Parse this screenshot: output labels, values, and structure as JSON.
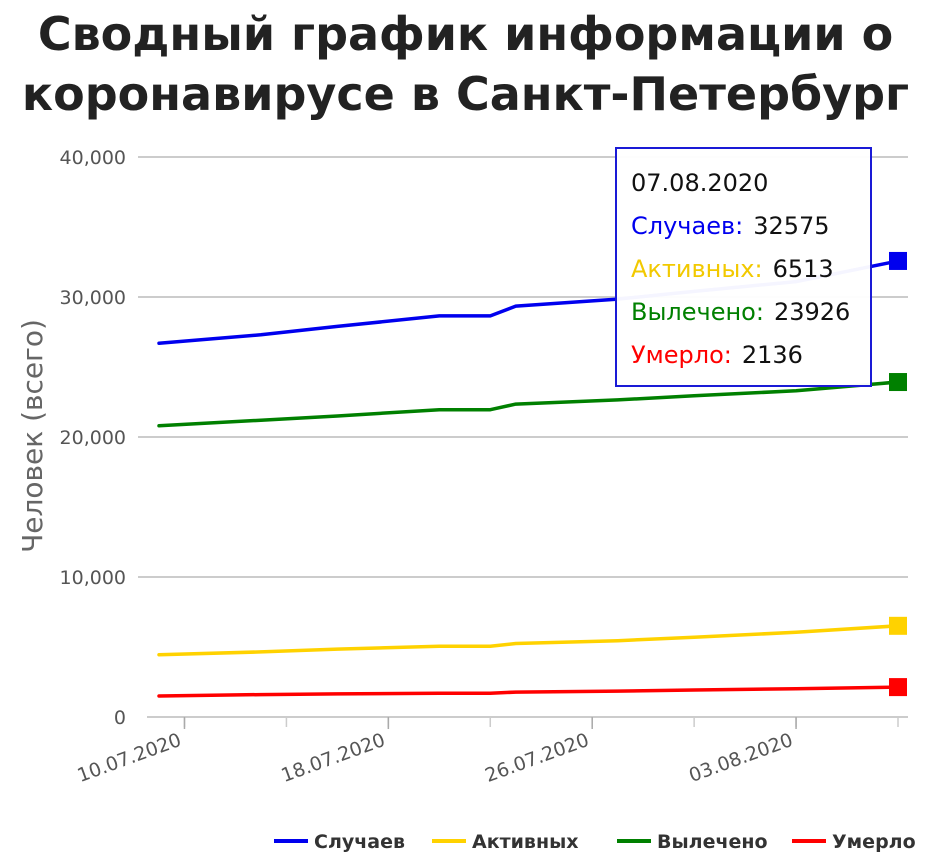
{
  "title": {
    "bold": "Сводный график",
    "rest": " информации о коронавирусе в Санкт-Петербург"
  },
  "tooltip": {
    "date": "07.08.2020",
    "rows": [
      {
        "label": "Случаев:",
        "value": "32575",
        "color": "#0000ee"
      },
      {
        "label": "Активных:",
        "value": "6513",
        "color": "#ffd200"
      },
      {
        "label": "Вылечено:",
        "value": "23926",
        "color": "#008000"
      },
      {
        "label": "Умерло:",
        "value": "2136",
        "color": "#ff0000"
      }
    ]
  },
  "chart_data": {
    "type": "line",
    "title": "Сводный график информации о коронавирусе в Санкт-Петербург",
    "xlabel": "",
    "ylabel": "Человек (всего)",
    "ylim": [
      0,
      40000
    ],
    "yticks": [
      0,
      10000,
      20000,
      30000,
      40000
    ],
    "ytick_labels": [
      "0",
      "10,000",
      "20,000",
      "30,000",
      "40,000"
    ],
    "xlim": [
      "2020-07-09",
      "2020-08-07"
    ],
    "xticks": [
      "2020-07-10",
      "2020-07-18",
      "2020-07-26",
      "2020-08-03"
    ],
    "xtick_labels": [
      "10.07.2020",
      "18.07.2020",
      "26.07.2020",
      "03.08.2020"
    ],
    "grid": true,
    "legend_position": "bottom-right",
    "series": [
      {
        "name": "Случаев",
        "color": "#0000ee",
        "points": [
          [
            "2020-07-09",
            26700
          ],
          [
            "2020-07-13",
            27300
          ],
          [
            "2020-07-16",
            27900
          ],
          [
            "2020-07-20",
            28650
          ],
          [
            "2020-07-22",
            28650
          ],
          [
            "2020-07-23",
            29350
          ],
          [
            "2020-07-27",
            29850
          ],
          [
            "2020-07-30",
            30400
          ],
          [
            "2020-08-03",
            31100
          ],
          [
            "2020-08-07",
            32575
          ]
        ]
      },
      {
        "name": "Активных",
        "color": "#ffd200",
        "points": [
          [
            "2020-07-09",
            4450
          ],
          [
            "2020-07-13",
            4650
          ],
          [
            "2020-07-16",
            4850
          ],
          [
            "2020-07-20",
            5050
          ],
          [
            "2020-07-22",
            5050
          ],
          [
            "2020-07-23",
            5250
          ],
          [
            "2020-07-27",
            5450
          ],
          [
            "2020-07-30",
            5700
          ],
          [
            "2020-08-03",
            6050
          ],
          [
            "2020-08-07",
            6513
          ]
        ]
      },
      {
        "name": "Вылечено",
        "color": "#008000",
        "points": [
          [
            "2020-07-09",
            20800
          ],
          [
            "2020-07-13",
            21200
          ],
          [
            "2020-07-16",
            21500
          ],
          [
            "2020-07-20",
            21950
          ],
          [
            "2020-07-22",
            21950
          ],
          [
            "2020-07-23",
            22350
          ],
          [
            "2020-07-27",
            22650
          ],
          [
            "2020-07-30",
            22950
          ],
          [
            "2020-08-03",
            23300
          ],
          [
            "2020-08-07",
            23926
          ]
        ]
      },
      {
        "name": "Умерло",
        "color": "#ff0000",
        "points": [
          [
            "2020-07-09",
            1500
          ],
          [
            "2020-07-13",
            1600
          ],
          [
            "2020-07-16",
            1650
          ],
          [
            "2020-07-20",
            1700
          ],
          [
            "2020-07-22",
            1700
          ],
          [
            "2020-07-23",
            1780
          ],
          [
            "2020-07-27",
            1850
          ],
          [
            "2020-07-30",
            1930
          ],
          [
            "2020-08-03",
            2020
          ],
          [
            "2020-08-07",
            2136
          ]
        ]
      }
    ]
  }
}
